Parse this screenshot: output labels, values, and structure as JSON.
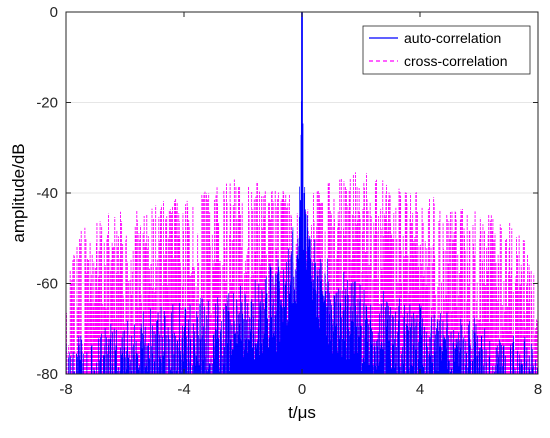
{
  "chart_data": {
    "type": "line",
    "title": "",
    "xlabel": "t/μs",
    "ylabel": "amplitude/dB",
    "xlim": [
      -8,
      8
    ],
    "ylim": [
      -80,
      0
    ],
    "xticks": [
      -8,
      -4,
      0,
      4,
      8
    ],
    "yticks": [
      0,
      -20,
      -40,
      -60,
      -80
    ],
    "xtick_labels": [
      "-8",
      "-4",
      "0",
      "4",
      "8"
    ],
    "ytick_labels": [
      "0",
      "-20",
      "-40",
      "-60",
      "-80"
    ],
    "grid": true,
    "legend_position": "top-right",
    "series": [
      {
        "name": "auto-correlation",
        "color": "#0000ff",
        "style": "solid",
        "x": [
          -8,
          -7,
          -6,
          -5,
          -4,
          -3,
          -2,
          -1,
          -0.5,
          -0.2,
          -0.05,
          0,
          0.05,
          0.2,
          0.5,
          1,
          2,
          3,
          4,
          5,
          6,
          7,
          8
        ],
        "y": [
          -72,
          -70,
          -68,
          -65,
          -64,
          -62,
          -60,
          -55,
          -50,
          -45,
          -35,
          0,
          -35,
          -45,
          -50,
          -55,
          -60,
          -62,
          -64,
          -65,
          -68,
          -70,
          -72
        ]
      },
      {
        "name": "cross-correlation",
        "color": "#ff00ff",
        "style": "dashed",
        "x": [
          -8,
          -7.5,
          -7,
          -6,
          -5,
          -4,
          -3,
          -2,
          -1,
          0,
          1,
          2,
          3,
          4,
          5,
          6,
          7,
          7.5,
          8
        ],
        "y": [
          -59,
          -48,
          -45,
          -44,
          -42,
          -41,
          -39,
          -36,
          -38,
          -42,
          -37,
          -35,
          -38,
          -40,
          -42,
          -44,
          -46,
          -43,
          -62
        ]
      }
    ]
  }
}
